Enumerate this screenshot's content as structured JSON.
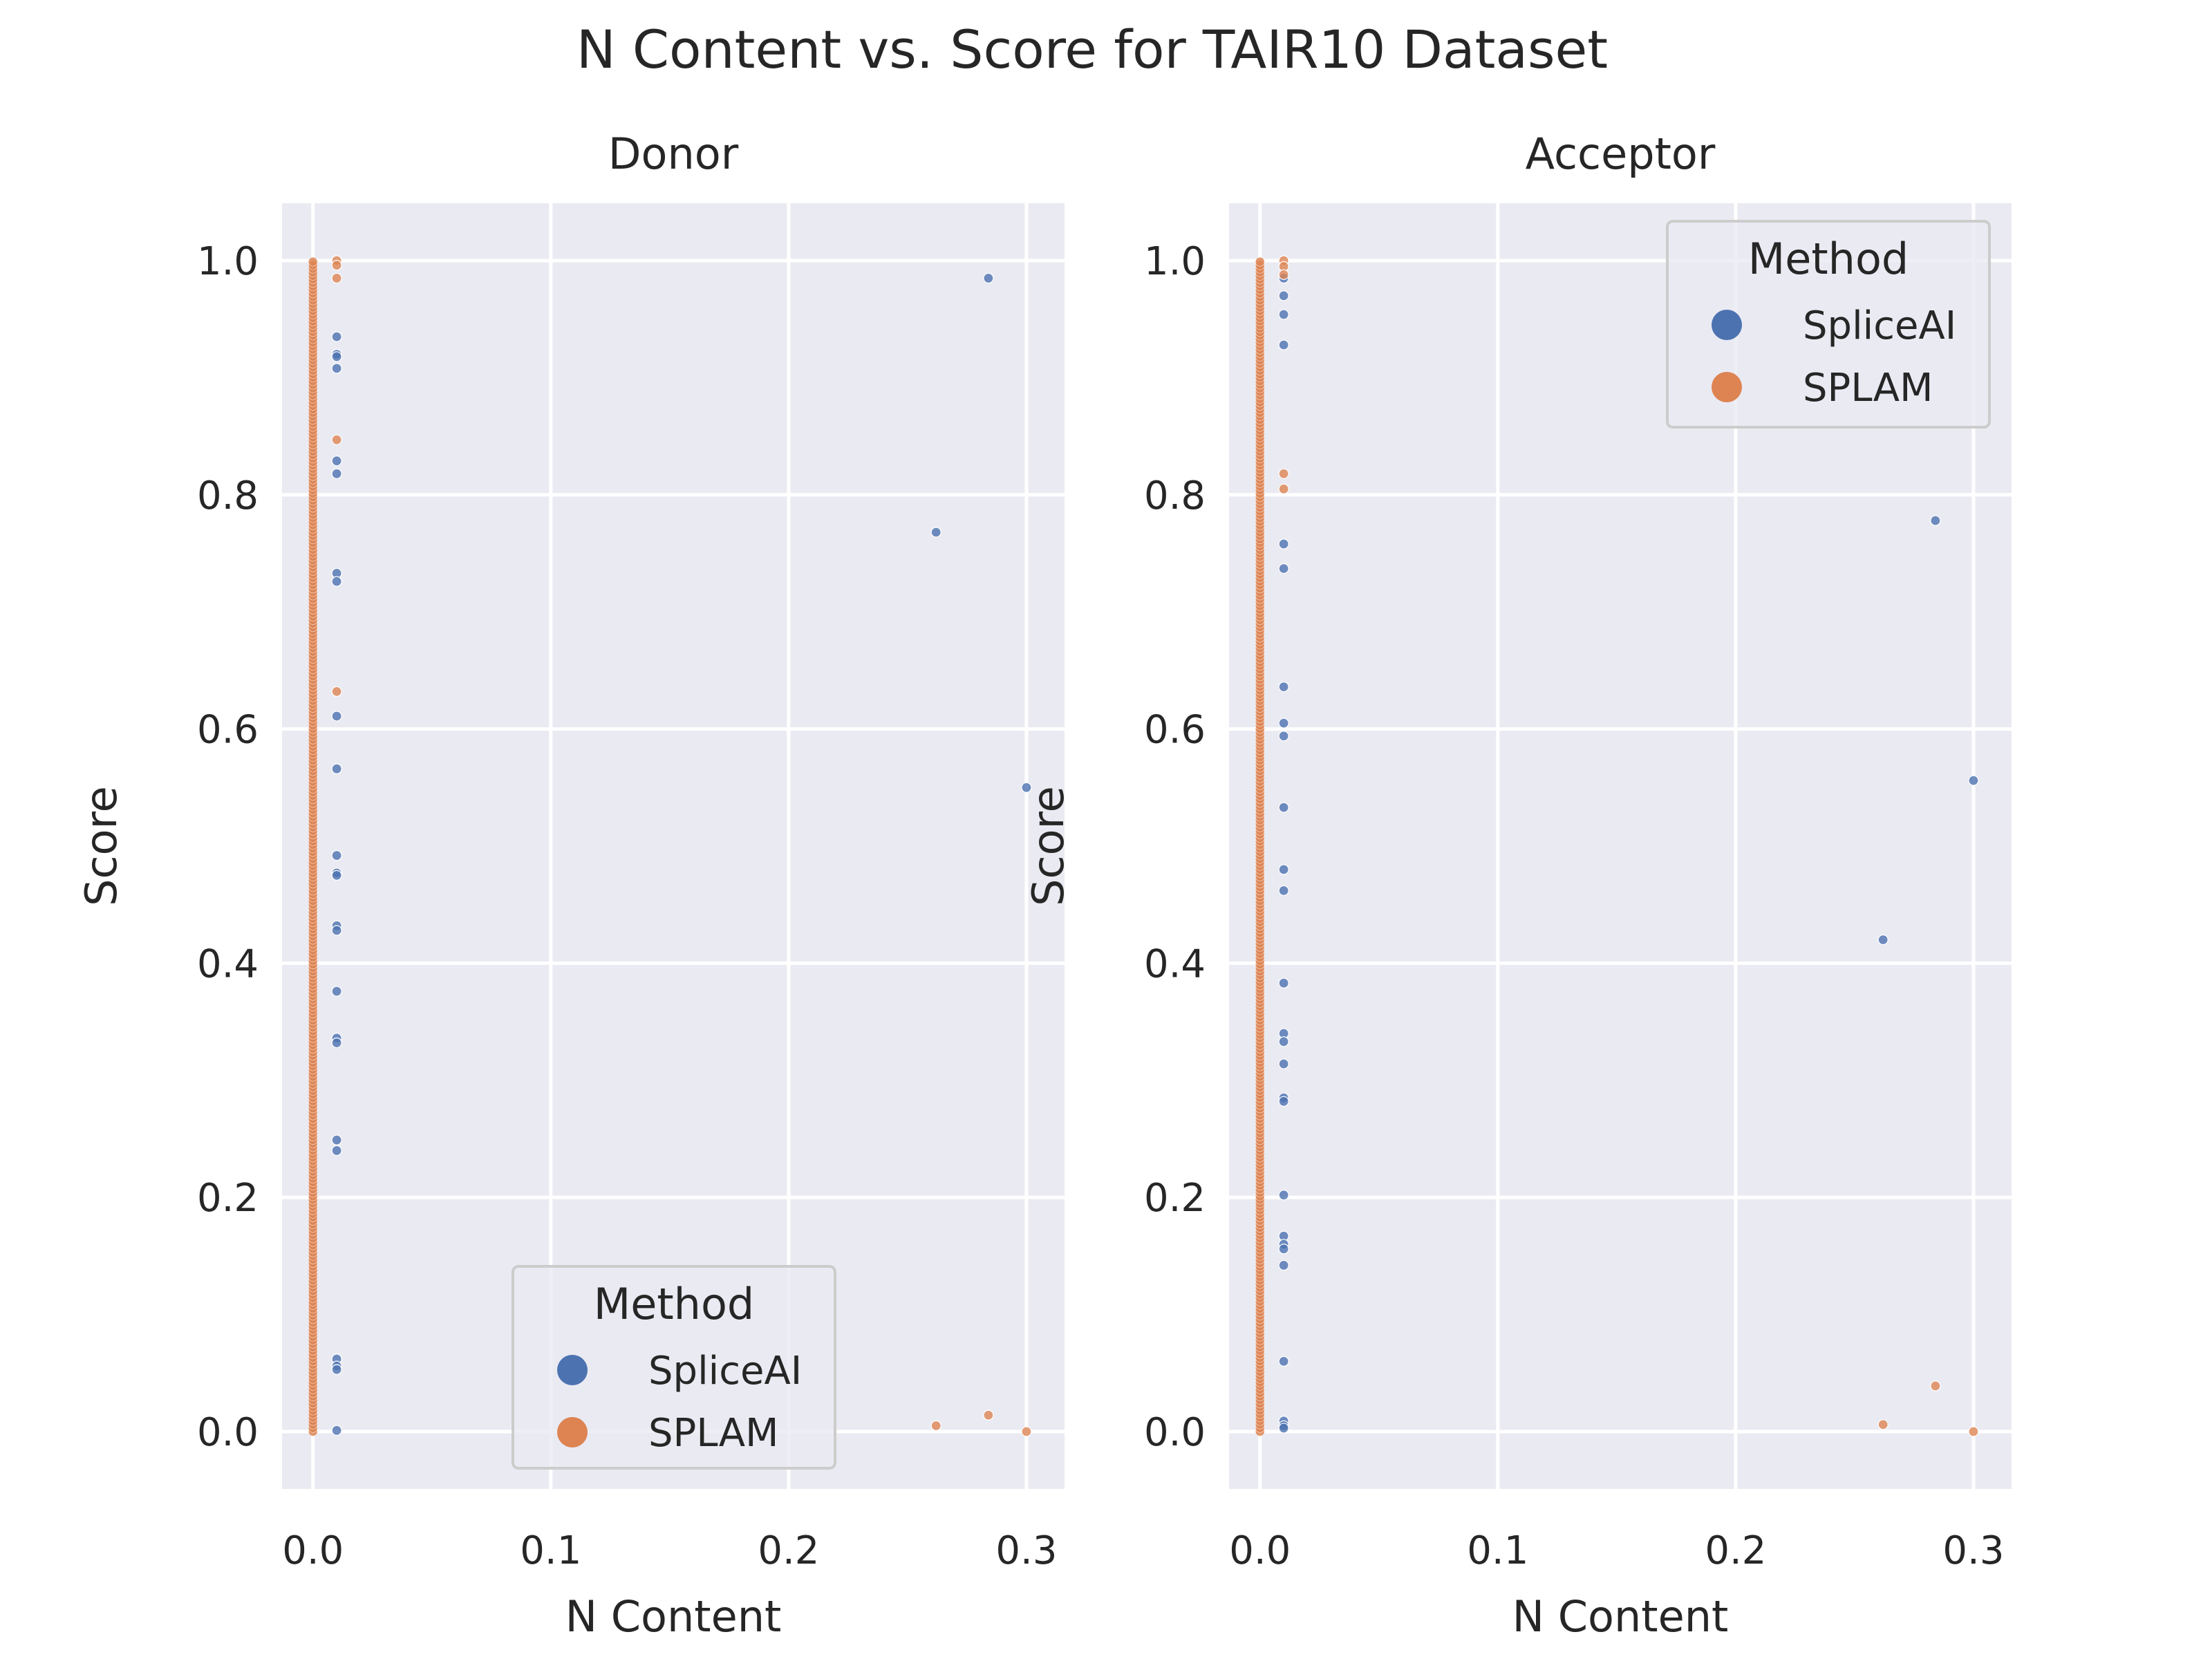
{
  "figure": {
    "title": "N Content vs. Score for TAIR10 Dataset"
  },
  "colors": {
    "spliceai": "#4c72b0",
    "splam": "#dd8452",
    "panel_bg": "#eaeaf2",
    "grid": "#ffffff",
    "text": "#262626"
  },
  "chart_data": [
    {
      "type": "scatter",
      "title": "Donor",
      "xlabel": "N Content",
      "ylabel": "Score",
      "xlim": [
        -0.013,
        0.316
      ],
      "ylim": [
        -0.049,
        1.049
      ],
      "xticks": [
        0.0,
        0.1,
        0.2,
        0.3
      ],
      "xtick_labels": [
        "0.0",
        "0.1",
        "0.2",
        "0.3"
      ],
      "yticks": [
        0.0,
        0.2,
        0.4,
        0.6,
        0.8,
        1.0
      ],
      "ytick_labels": [
        "0.0",
        "0.2",
        "0.4",
        "0.6",
        "0.8",
        "1.0"
      ],
      "grid": true,
      "legend": {
        "title": "Method",
        "placement": "lower-center",
        "entries": [
          "SpliceAI",
          "SPLAM"
        ]
      },
      "series": [
        {
          "name": "SpliceAI",
          "points": [
            [
              0.01,
              0.935
            ],
            [
              0.01,
              0.92
            ],
            [
              0.01,
              0.918
            ],
            [
              0.01,
              0.908
            ],
            [
              0.01,
              0.829
            ],
            [
              0.01,
              0.818
            ],
            [
              0.01,
              0.733
            ],
            [
              0.01,
              0.726
            ],
            [
              0.01,
              0.611
            ],
            [
              0.01,
              0.566
            ],
            [
              0.01,
              0.492
            ],
            [
              0.01,
              0.477
            ],
            [
              0.01,
              0.475
            ],
            [
              0.01,
              0.432
            ],
            [
              0.01,
              0.428
            ],
            [
              0.01,
              0.376
            ],
            [
              0.01,
              0.336
            ],
            [
              0.01,
              0.332
            ],
            [
              0.01,
              0.249
            ],
            [
              0.01,
              0.24
            ],
            [
              0.01,
              0.062
            ],
            [
              0.01,
              0.056
            ],
            [
              0.01,
              0.053
            ],
            [
              0.01,
              0.001
            ],
            [
              0.284,
              0.985
            ],
            [
              0.262,
              0.768
            ],
            [
              0.3,
              0.55
            ]
          ]
        },
        {
          "name": "SPLAM",
          "points": [
            [
              0.01,
              1.0
            ],
            [
              0.01,
              0.996
            ],
            [
              0.01,
              0.985
            ],
            [
              0.01,
              0.847
            ],
            [
              0.01,
              0.632
            ],
            [
              0.262,
              0.005
            ],
            [
              0.284,
              0.014
            ],
            [
              0.3,
              0.0
            ]
          ]
        }
      ]
    },
    {
      "type": "scatter",
      "title": "Acceptor",
      "xlabel": "N Content",
      "ylabel": "Score",
      "xlim": [
        -0.013,
        0.316
      ],
      "ylim": [
        -0.049,
        1.049
      ],
      "xticks": [
        0.0,
        0.1,
        0.2,
        0.3
      ],
      "xtick_labels": [
        "0.0",
        "0.1",
        "0.2",
        "0.3"
      ],
      "yticks": [
        0.0,
        0.2,
        0.4,
        0.6,
        0.8,
        1.0
      ],
      "ytick_labels": [
        "0.0",
        "0.2",
        "0.4",
        "0.6",
        "0.8",
        "1.0"
      ],
      "grid": true,
      "legend": {
        "title": "Method",
        "placement": "upper-right",
        "entries": [
          "SpliceAI",
          "SPLAM"
        ]
      },
      "series": [
        {
          "name": "SpliceAI",
          "points": [
            [
              0.01,
              0.985
            ],
            [
              0.01,
              0.97
            ],
            [
              0.01,
              0.954
            ],
            [
              0.01,
              0.928
            ],
            [
              0.01,
              0.758
            ],
            [
              0.01,
              0.737
            ],
            [
              0.01,
              0.636
            ],
            [
              0.01,
              0.605
            ],
            [
              0.01,
              0.594
            ],
            [
              0.01,
              0.533
            ],
            [
              0.01,
              0.48
            ],
            [
              0.01,
              0.462
            ],
            [
              0.01,
              0.383
            ],
            [
              0.01,
              0.34
            ],
            [
              0.01,
              0.333
            ],
            [
              0.01,
              0.314
            ],
            [
              0.01,
              0.285
            ],
            [
              0.01,
              0.282
            ],
            [
              0.01,
              0.202
            ],
            [
              0.01,
              0.167
            ],
            [
              0.01,
              0.16
            ],
            [
              0.01,
              0.156
            ],
            [
              0.01,
              0.142
            ],
            [
              0.01,
              0.06
            ],
            [
              0.01,
              0.009
            ],
            [
              0.01,
              0.005
            ],
            [
              0.01,
              0.003
            ],
            [
              0.284,
              0.778
            ],
            [
              0.3,
              0.556
            ],
            [
              0.262,
              0.42
            ]
          ]
        },
        {
          "name": "SPLAM",
          "points": [
            [
              0.01,
              1.0
            ],
            [
              0.01,
              0.995
            ],
            [
              0.01,
              0.988
            ],
            [
              0.01,
              0.818
            ],
            [
              0.01,
              0.805
            ],
            [
              0.262,
              0.006
            ],
            [
              0.284,
              0.039
            ],
            [
              0.3,
              0.0
            ]
          ]
        }
      ]
    }
  ]
}
